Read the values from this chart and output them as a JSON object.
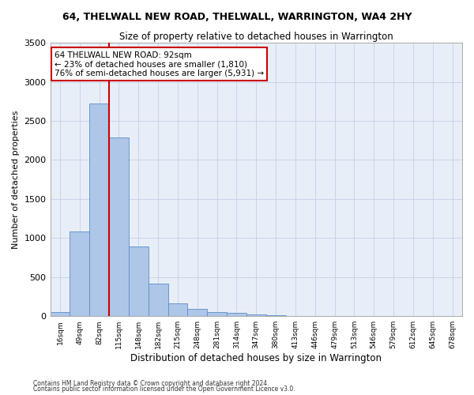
{
  "title": "64, THELWALL NEW ROAD, THELWALL, WARRINGTON, WA4 2HY",
  "subtitle": "Size of property relative to detached houses in Warrington",
  "xlabel": "Distribution of detached houses by size in Warrington",
  "ylabel": "Number of detached properties",
  "categories": [
    "16sqm",
    "49sqm",
    "82sqm",
    "115sqm",
    "148sqm",
    "182sqm",
    "215sqm",
    "248sqm",
    "281sqm",
    "314sqm",
    "347sqm",
    "380sqm",
    "413sqm",
    "446sqm",
    "479sqm",
    "513sqm",
    "546sqm",
    "579sqm",
    "612sqm",
    "645sqm",
    "678sqm"
  ],
  "values": [
    50,
    1080,
    2720,
    2290,
    890,
    415,
    160,
    90,
    55,
    40,
    20,
    10,
    5,
    2,
    1,
    0,
    0,
    0,
    0,
    0,
    0
  ],
  "bar_color": "#aec6e8",
  "bar_edge_color": "#5b8cc8",
  "grid_color": "#c8d4e8",
  "background_color": "#e8eef8",
  "vline_x_index": 2.5,
  "vline_color": "#cc0000",
  "annotation_text": "64 THELWALL NEW ROAD: 92sqm\n← 23% of detached houses are smaller (1,810)\n76% of semi-detached houses are larger (5,931) →",
  "annotation_box_color": "#ffffff",
  "annotation_box_edge": "#cc0000",
  "ylim": [
    0,
    3500
  ],
  "yticks": [
    0,
    500,
    1000,
    1500,
    2000,
    2500,
    3000,
    3500
  ],
  "footer1": "Contains HM Land Registry data © Crown copyright and database right 2024.",
  "footer2": "Contains public sector information licensed under the Open Government Licence v3.0."
}
